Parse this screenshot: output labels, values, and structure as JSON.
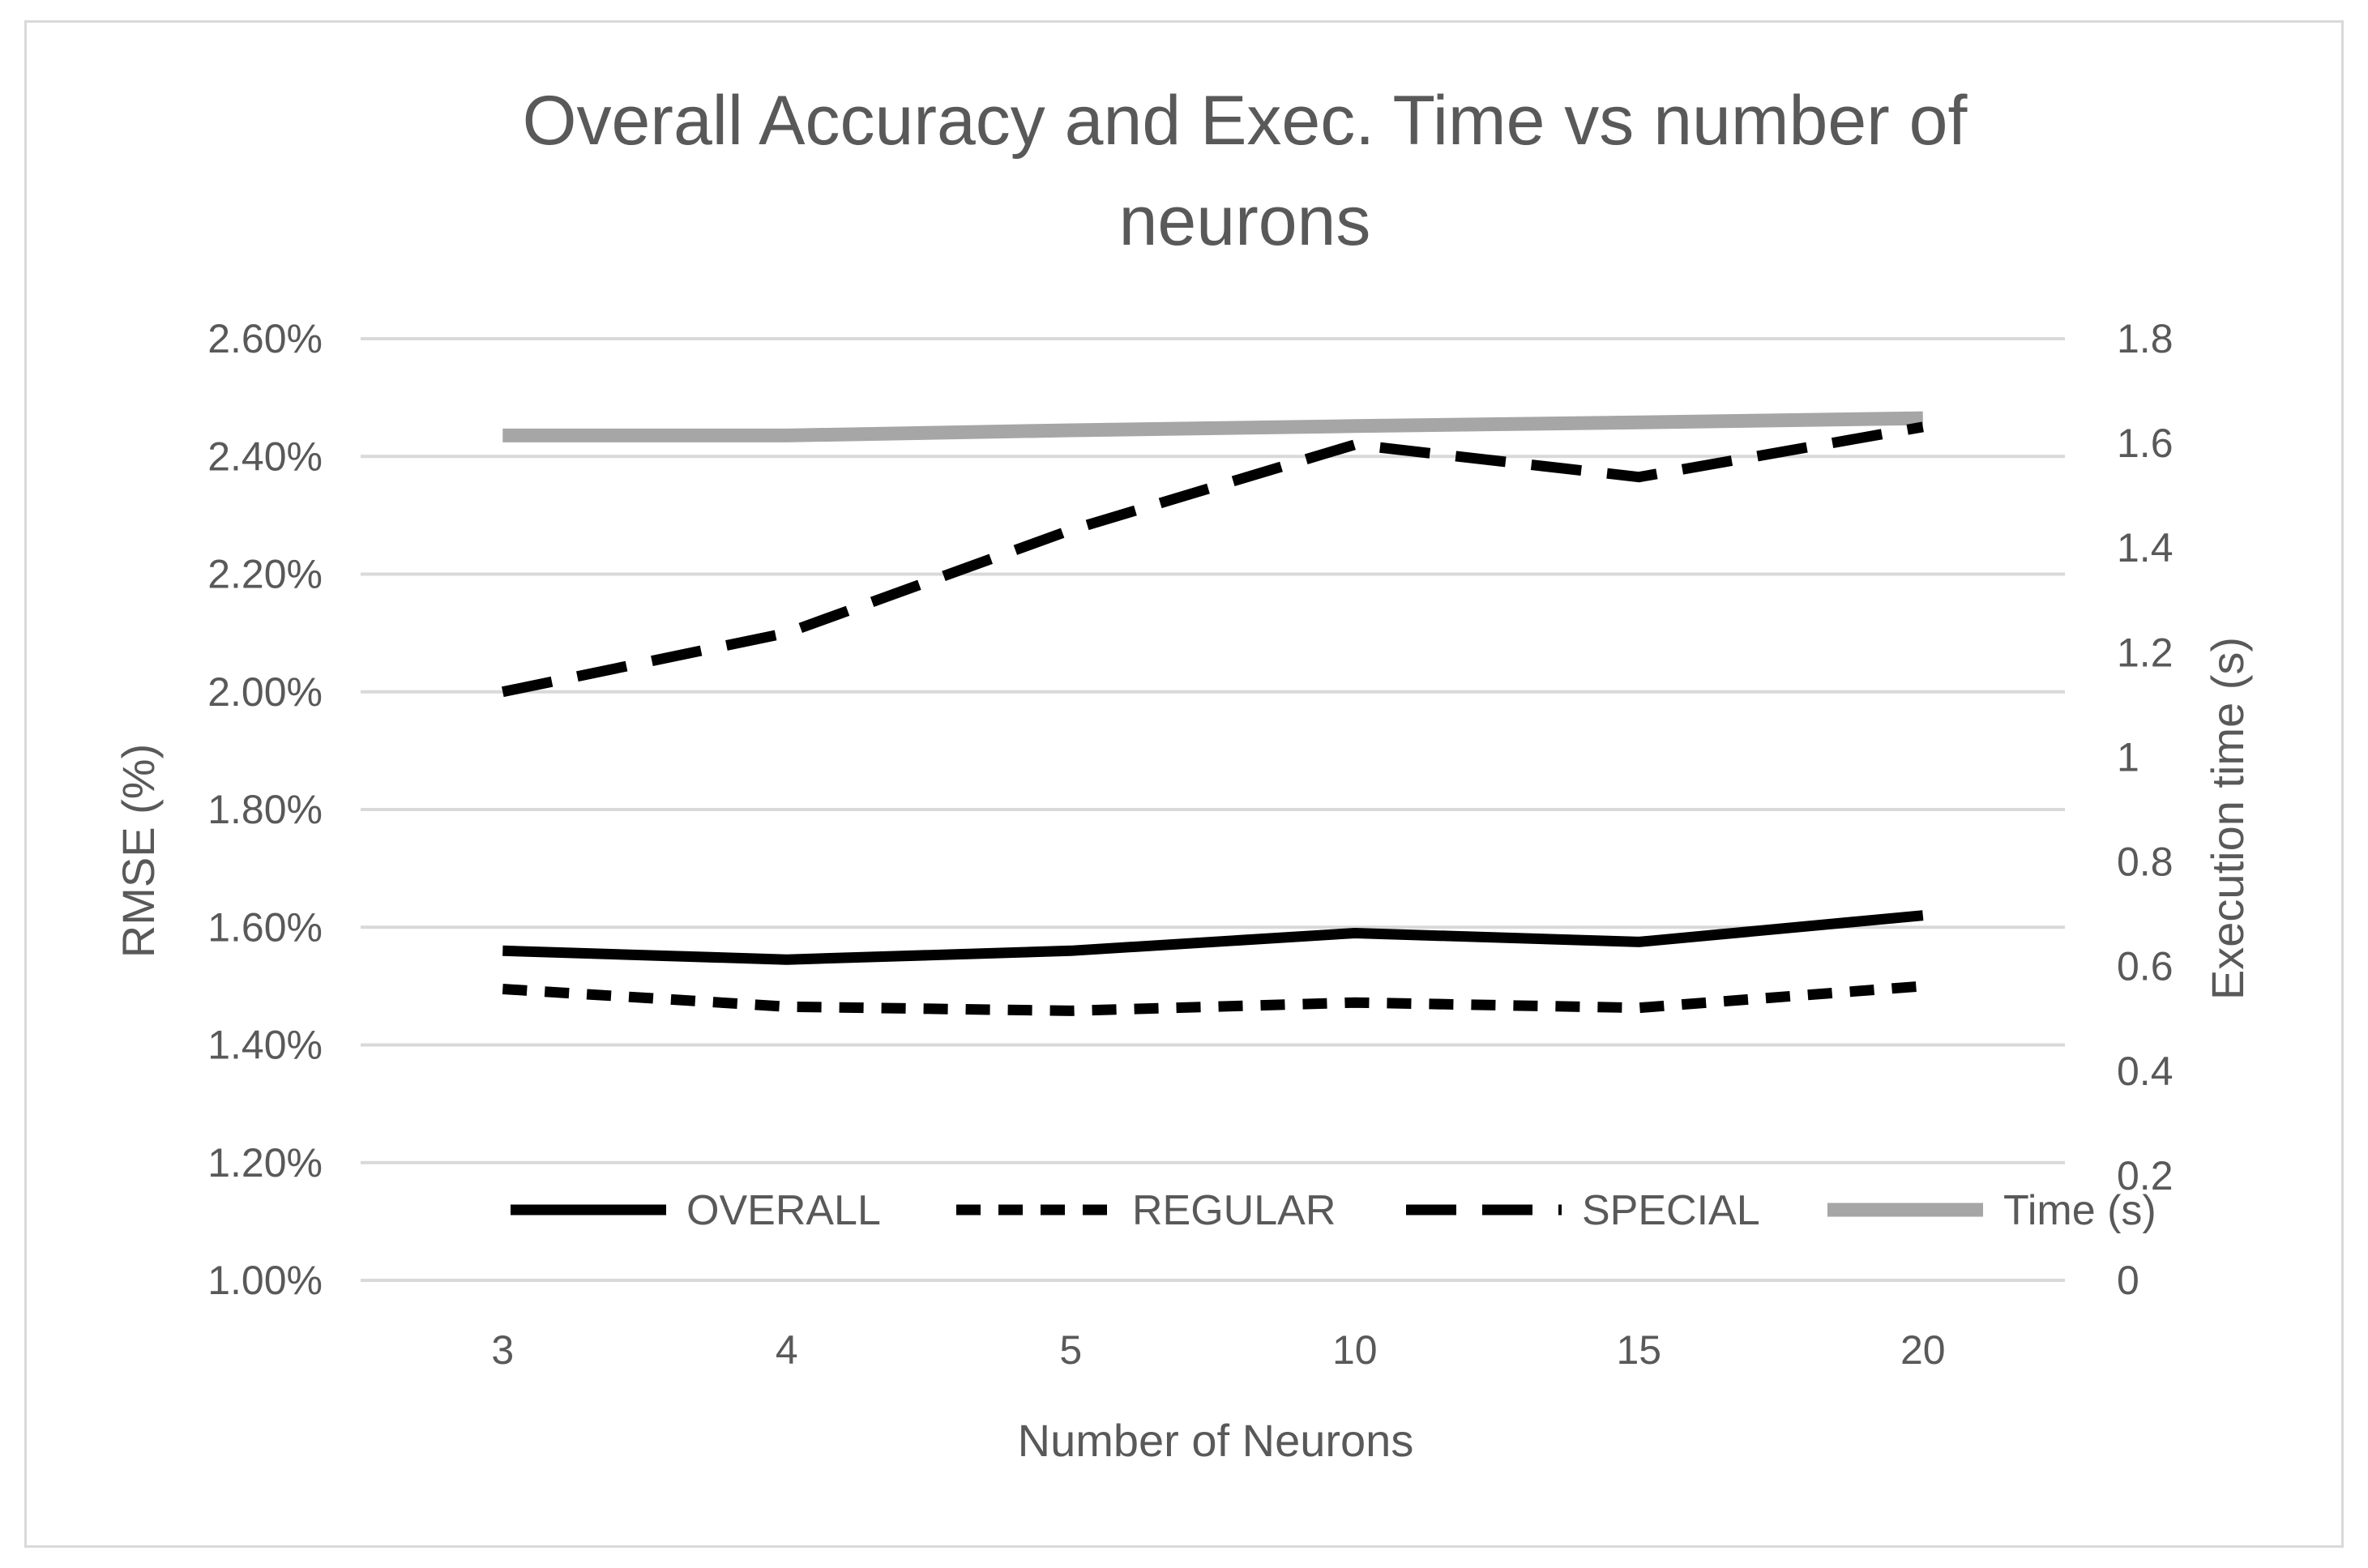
{
  "chart_data": {
    "type": "line",
    "title_lines": [
      "Overall Accuracy and Exec. Time vs number of",
      "neurons"
    ],
    "xlabel": "Number  of Neurons",
    "ylabel": "RMSE  (%)",
    "y2label": "Execution time  (s)",
    "categories": [
      "3",
      "4",
      "5",
      "10",
      "15",
      "20"
    ],
    "ylim": [
      1.0,
      2.6
    ],
    "y_ticks": [
      "1.00%",
      "1.20%",
      "1.40%",
      "1.60%",
      "1.80%",
      "2.00%",
      "2.20%",
      "2.40%",
      "2.60%"
    ],
    "y2lim": [
      0,
      1.8
    ],
    "y2_ticks": [
      "0",
      "0.2",
      "0.4",
      "0.6",
      "0.8",
      "1",
      "1.2",
      "1.4",
      "1.6",
      "1.8"
    ],
    "grid": true,
    "legend_position": "bottom-inside",
    "series": [
      {
        "name": "OVERALL",
        "axis": "left",
        "style": "solid",
        "color": "#000000",
        "values": [
          1.56,
          1.545,
          1.56,
          1.59,
          1.575,
          1.62
        ]
      },
      {
        "name": "REGULAR",
        "axis": "left",
        "style": "short-dash",
        "color": "#000000",
        "values": [
          1.495,
          1.465,
          1.458,
          1.472,
          1.463,
          1.5
        ]
      },
      {
        "name": "SPECIAL",
        "axis": "left",
        "style": "long-dash",
        "color": "#000000",
        "values": [
          2.0,
          2.1,
          2.275,
          2.42,
          2.365,
          2.45
        ]
      },
      {
        "name": "Time (s)",
        "axis": "right",
        "style": "solid",
        "color": "#a6a6a6",
        "values": [
          1.615,
          1.615,
          1.625,
          1.633,
          1.64,
          1.648
        ]
      }
    ]
  }
}
